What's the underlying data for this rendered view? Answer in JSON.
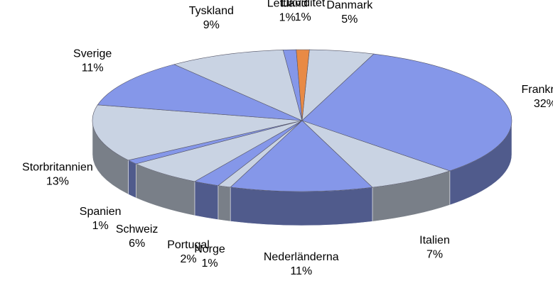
{
  "chart_data": {
    "type": "pie",
    "categories": [
      "Danmark",
      "Frankrike",
      "Italien",
      "Nederländerna",
      "Norge",
      "Portugal",
      "Schweiz",
      "Spanien",
      "Storbritannien",
      "Sverige",
      "Tyskland",
      "Lettland",
      "Likviditet"
    ],
    "values": [
      5,
      32,
      7,
      11,
      1,
      2,
      6,
      1,
      13,
      11,
      9,
      1,
      1
    ],
    "value_labels": [
      "5%",
      "32%",
      "7%",
      "11%",
      "1%",
      "2%",
      "6%",
      "1%",
      "13%",
      "11%",
      "9%",
      "1%",
      "1%"
    ],
    "colors": [
      "#c9d3e3",
      "#8597e9",
      "#c9d3e3",
      "#8597e9",
      "#c9d3e3",
      "#8597e9",
      "#c9d3e3",
      "#8597e9",
      "#c9d3e3",
      "#8597e9",
      "#c9d3e3",
      "#8597e9",
      "#e88a45"
    ]
  }
}
